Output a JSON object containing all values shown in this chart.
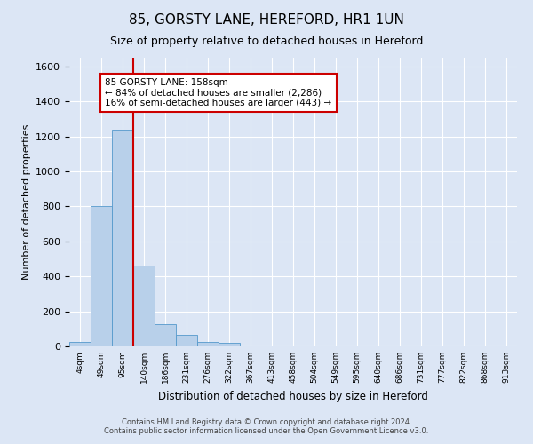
{
  "title": "85, GORSTY LANE, HEREFORD, HR1 1UN",
  "subtitle": "Size of property relative to detached houses in Hereford",
  "xlabel": "Distribution of detached houses by size in Hereford",
  "ylabel": "Number of detached properties",
  "bar_labels": [
    "4sqm",
    "49sqm",
    "95sqm",
    "140sqm",
    "186sqm",
    "231sqm",
    "276sqm",
    "322sqm",
    "367sqm",
    "413sqm",
    "458sqm",
    "504sqm",
    "549sqm",
    "595sqm",
    "640sqm",
    "686sqm",
    "731sqm",
    "777sqm",
    "822sqm",
    "868sqm",
    "913sqm"
  ],
  "bar_values": [
    25,
    800,
    1240,
    460,
    125,
    65,
    25,
    20,
    0,
    0,
    0,
    0,
    0,
    0,
    0,
    0,
    0,
    0,
    0,
    0,
    0
  ],
  "bar_color": "#b8d0ea",
  "bar_edgecolor": "#5599cc",
  "ylim": [
    0,
    1650
  ],
  "yticks": [
    0,
    200,
    400,
    600,
    800,
    1000,
    1200,
    1400,
    1600
  ],
  "vline_color": "#cc0000",
  "annotation_title": "85 GORSTY LANE: 158sqm",
  "annotation_line1": "← 84% of detached houses are smaller (2,286)",
  "annotation_line2": "16% of semi-detached houses are larger (443) →",
  "annotation_box_color": "#ffffff",
  "annotation_box_edgecolor": "#cc0000",
  "footer1": "Contains HM Land Registry data © Crown copyright and database right 2024.",
  "footer2": "Contains public sector information licensed under the Open Government Licence v3.0.",
  "background_color": "#dce6f5",
  "plot_background": "#dce6f5"
}
